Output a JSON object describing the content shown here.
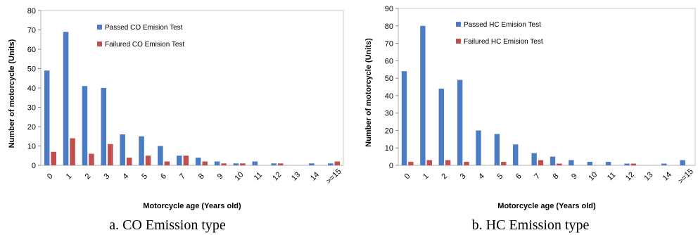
{
  "chart_data": [
    {
      "type": "bar",
      "caption": "a. CO Emission type",
      "xlabel": "Motorcycle age (Years old)",
      "ylabel": "Number of motorcycle (Units)",
      "ylim": [
        0,
        80
      ],
      "yticks": [
        0,
        10,
        20,
        30,
        40,
        50,
        60,
        70,
        80
      ],
      "grid": false,
      "legend_position": "top-center",
      "categories": [
        "0",
        "1",
        "2",
        "3",
        "4",
        "5",
        "6",
        "7",
        "8",
        "9",
        "10",
        "11",
        "12",
        "13",
        "14",
        ">=15"
      ],
      "series": [
        {
          "name": "Passed CO Emision Test",
          "color": "#4a7bc4",
          "values": [
            49,
            69,
            41,
            40,
            16,
            15,
            10,
            5,
            4,
            2,
            1,
            2,
            1,
            0,
            1,
            1
          ]
        },
        {
          "name": "Failured CO Emision Test",
          "color": "#c0504d",
          "values": [
            7,
            14,
            6,
            11,
            4,
            5,
            2,
            5,
            2,
            1,
            1,
            0,
            1,
            0,
            0,
            2
          ]
        }
      ]
    },
    {
      "type": "bar",
      "caption": "b. HC Emission type",
      "xlabel": "Motorcycle age (Years old)",
      "ylabel": "Number of motorcycle (Units)",
      "ylim": [
        0,
        90
      ],
      "yticks": [
        0,
        10,
        20,
        30,
        40,
        50,
        60,
        70,
        80,
        90
      ],
      "grid": false,
      "legend_position": "top-center",
      "categories": [
        "0",
        "1",
        "2",
        "3",
        "4",
        "5",
        "6",
        "7",
        "8",
        "9",
        "10",
        "11",
        "12",
        "13",
        "14",
        ">=15"
      ],
      "series": [
        {
          "name": "Passed HC Emision Test",
          "color": "#4a7bc4",
          "values": [
            54,
            80,
            44,
            49,
            20,
            18,
            12,
            7,
            5,
            3,
            2,
            2,
            1,
            0,
            1,
            3
          ]
        },
        {
          "name": "Failured HC Emision Test",
          "color": "#c0504d",
          "values": [
            2,
            3,
            3,
            2,
            0,
            2,
            0,
            3,
            1,
            0,
            0,
            0,
            1,
            0,
            0,
            0
          ]
        }
      ]
    }
  ]
}
